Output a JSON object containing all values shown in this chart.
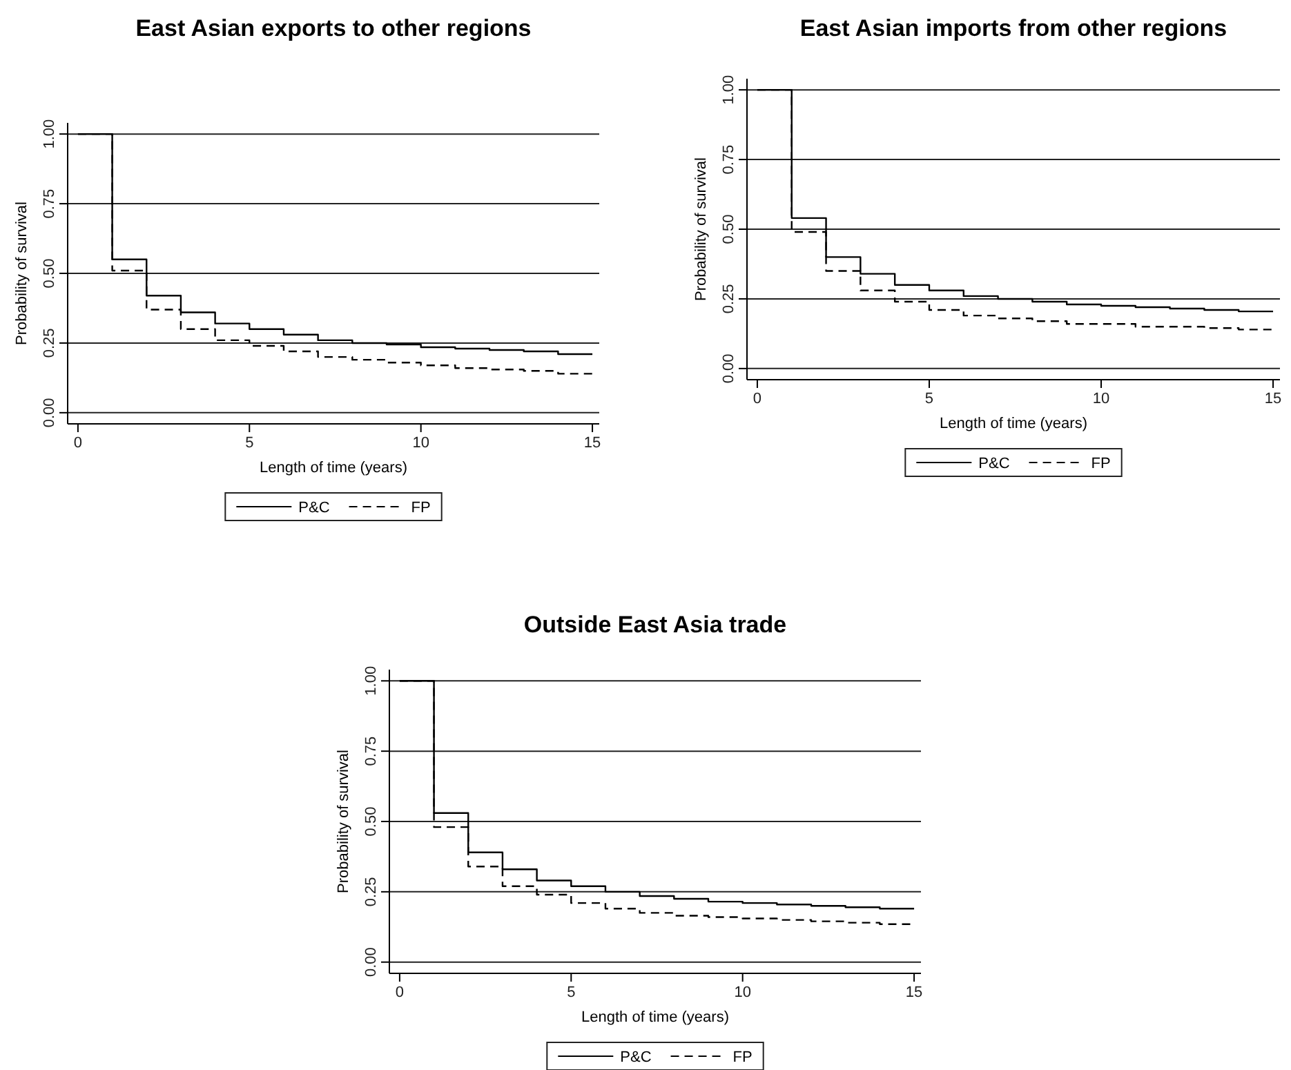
{
  "chart_data": [
    {
      "type": "step",
      "title": "East Asian exports to other regions",
      "xlabel": "Length of time (years)",
      "ylabel": "Probability of survival",
      "x": [
        0,
        1,
        2,
        3,
        4,
        5,
        6,
        7,
        8,
        9,
        10,
        11,
        12,
        13,
        14,
        15
      ],
      "xlim": [
        -0.3,
        15.2
      ],
      "ylim": [
        -0.04,
        1.04
      ],
      "xticks": [
        0,
        5,
        10,
        15
      ],
      "yticks": [
        {
          "value": 0,
          "label": "0.00"
        },
        {
          "value": 0.25,
          "label": "0.25"
        },
        {
          "value": 0.5,
          "label": "0.50"
        },
        {
          "value": 0.75,
          "label": "0.75"
        },
        {
          "value": 1,
          "label": "1.00"
        }
      ],
      "grid": "y",
      "legend": "bottom",
      "marker": "none",
      "series": [
        {
          "name": "P&C",
          "color": "#000000",
          "line_style": "solid",
          "values": [
            1.0,
            0.55,
            0.42,
            0.36,
            0.32,
            0.3,
            0.28,
            0.26,
            0.25,
            0.245,
            0.235,
            0.23,
            0.225,
            0.22,
            0.21,
            0.21
          ]
        },
        {
          "name": "FP",
          "color": "#000000",
          "line_style": "dashed",
          "values": [
            1.0,
            0.51,
            0.37,
            0.3,
            0.26,
            0.24,
            0.22,
            0.2,
            0.19,
            0.18,
            0.17,
            0.16,
            0.155,
            0.15,
            0.14,
            0.14
          ]
        }
      ]
    },
    {
      "type": "step",
      "title": "East Asian imports from other regions",
      "xlabel": "Length of time (years)",
      "ylabel": "Probability of survival",
      "x": [
        0,
        1,
        2,
        3,
        4,
        5,
        6,
        7,
        8,
        9,
        10,
        11,
        12,
        13,
        14,
        15
      ],
      "xlim": [
        -0.3,
        15.2
      ],
      "ylim": [
        -0.04,
        1.04
      ],
      "xticks": [
        0,
        5,
        10,
        15
      ],
      "yticks": [
        {
          "value": 0,
          "label": "0.00"
        },
        {
          "value": 0.25,
          "label": "0.25"
        },
        {
          "value": 0.5,
          "label": "0.50"
        },
        {
          "value": 0.75,
          "label": "0.75"
        },
        {
          "value": 1,
          "label": "1.00"
        }
      ],
      "grid": "y",
      "legend": "bottom",
      "marker": "none",
      "series": [
        {
          "name": "P&C",
          "color": "#000000",
          "line_style": "solid",
          "values": [
            1.0,
            0.54,
            0.4,
            0.34,
            0.3,
            0.28,
            0.26,
            0.25,
            0.24,
            0.23,
            0.225,
            0.22,
            0.215,
            0.21,
            0.205,
            0.205
          ]
        },
        {
          "name": "FP",
          "color": "#000000",
          "line_style": "dashed",
          "values": [
            1.0,
            0.49,
            0.35,
            0.28,
            0.24,
            0.21,
            0.19,
            0.18,
            0.17,
            0.16,
            0.16,
            0.15,
            0.15,
            0.145,
            0.14,
            0.14
          ]
        }
      ]
    },
    {
      "type": "step",
      "title": "Outside East Asia trade",
      "xlabel": "Length of time (years)",
      "ylabel": "Probability of survival",
      "x": [
        0,
        1,
        2,
        3,
        4,
        5,
        6,
        7,
        8,
        9,
        10,
        11,
        12,
        13,
        14,
        15
      ],
      "xlim": [
        -0.3,
        15.2
      ],
      "ylim": [
        -0.04,
        1.04
      ],
      "xticks": [
        0,
        5,
        10,
        15
      ],
      "yticks": [
        {
          "value": 0,
          "label": "0.00"
        },
        {
          "value": 0.25,
          "label": "0.25"
        },
        {
          "value": 0.5,
          "label": "0.50"
        },
        {
          "value": 0.75,
          "label": "0.75"
        },
        {
          "value": 1,
          "label": "1.00"
        }
      ],
      "grid": "y",
      "legend": "bottom",
      "marker": "none",
      "series": [
        {
          "name": "P&C",
          "color": "#000000",
          "line_style": "solid",
          "values": [
            1.0,
            0.53,
            0.39,
            0.33,
            0.29,
            0.27,
            0.25,
            0.235,
            0.225,
            0.215,
            0.21,
            0.205,
            0.2,
            0.195,
            0.19,
            0.19
          ]
        },
        {
          "name": "FP",
          "color": "#000000",
          "line_style": "dashed",
          "values": [
            1.0,
            0.48,
            0.34,
            0.27,
            0.24,
            0.21,
            0.19,
            0.175,
            0.165,
            0.16,
            0.155,
            0.15,
            0.145,
            0.14,
            0.135,
            0.135
          ]
        }
      ]
    }
  ]
}
